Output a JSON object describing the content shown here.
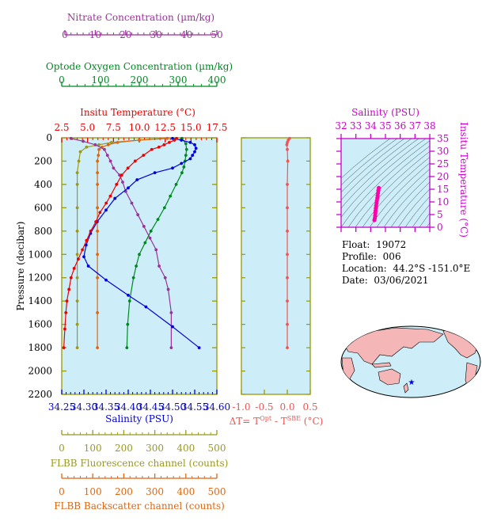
{
  "colors": {
    "nitrate": "#993399",
    "oxygen": "#008822",
    "temperature": "#ee0000",
    "salinity": "#0000dd",
    "fluorescence": "#999922",
    "backscatter": "#dd6611",
    "dt": "#ee5555",
    "ts_axis": "#cc00cc",
    "panel_bg": "#cdeef8",
    "panel_border": "#999900"
  },
  "axes": {
    "nitrate": {
      "label": "Nitrate Concentration (µm/kg)",
      "range": [
        0,
        50
      ],
      "ticks": [
        "0",
        "10",
        "20",
        "30",
        "40",
        "50"
      ]
    },
    "oxygen": {
      "label": "Optode Oxygen Concentration (µm/kg)",
      "range": [
        0,
        400
      ],
      "ticks": [
        "0",
        "100",
        "200",
        "300",
        "400"
      ]
    },
    "temperature": {
      "label": "Insitu Temperature (°C)",
      "range": [
        2.5,
        17.5
      ],
      "ticks": [
        "2.5",
        "5.0",
        "7.5",
        "10.0",
        "12.5",
        "15.0",
        "17.5"
      ]
    },
    "salinity": {
      "label": "Salinity (PSU)",
      "range": [
        34.25,
        34.6
      ],
      "ticks": [
        "34.25",
        "34.30",
        "34.35",
        "34.40",
        "34.45",
        "34.50",
        "34.55",
        "34.60"
      ]
    },
    "pressure": {
      "label": "Pressure (decibar)",
      "range": [
        0,
        2200
      ],
      "ticks": [
        "0",
        "200",
        "400",
        "600",
        "800",
        "1000",
        "1200",
        "1400",
        "1600",
        "1800",
        "2000",
        "2200"
      ]
    },
    "fluorescence": {
      "label": "FLBB Fluorescence channel (counts)",
      "range": [
        0,
        500
      ],
      "ticks": [
        "0",
        "100",
        "200",
        "300",
        "400",
        "500"
      ]
    },
    "backscatter": {
      "label": "FLBB Backscatter channel (counts)",
      "range": [
        0,
        500
      ],
      "ticks": [
        "0",
        "100",
        "200",
        "300",
        "400",
        "500"
      ]
    },
    "dt": {
      "label_main": "ΔT= T",
      "sup1": "Opt",
      "label_mid": " - T",
      "sup2": "SBE",
      "label_end": " (°C)",
      "range": [
        -1.0,
        0.5
      ],
      "ticks": [
        "-1.0",
        "-0.5",
        "0.0",
        "0.5"
      ]
    },
    "ts_salinity": {
      "label": "Salinity (PSU)",
      "range": [
        32,
        38
      ],
      "ticks": [
        "32",
        "33",
        "34",
        "35",
        "36",
        "37",
        "38"
      ]
    },
    "ts_temperature": {
      "label": "Insitu Temperature (°C)",
      "range": [
        0,
        35
      ],
      "ticks": [
        "0",
        "5",
        "10",
        "15",
        "20",
        "25",
        "30",
        "35"
      ]
    }
  },
  "info": {
    "float_label": "Float:",
    "float_value": "19072",
    "profile_label": "Profile:",
    "profile_value": "006",
    "location_label": "Location:",
    "location_value": "44.2°S  -151.0°E",
    "date_label": "Date:",
    "date_value": "03/06/2021"
  },
  "chart_data": [
    {
      "type": "line",
      "description_axis": "profiles vs pressure",
      "y_variable": "Pressure (decibar)",
      "ylim": [
        2200,
        0
      ],
      "series": [
        {
          "key": "temperature",
          "x": [
            13.6,
            13.4,
            12.9,
            12.4,
            11.9,
            11.2,
            10.4,
            9.6,
            8.9,
            8.3,
            7.8,
            7.2,
            6.8,
            6.2,
            5.8,
            5.3,
            4.9,
            4.5,
            4.1,
            3.7,
            3.4,
            3.2,
            3.0,
            2.9,
            2.8,
            2.7
          ],
          "p": [
            5,
            20,
            40,
            60,
            80,
            100,
            150,
            200,
            260,
            320,
            400,
            500,
            560,
            640,
            720,
            800,
            880,
            960,
            1040,
            1120,
            1200,
            1300,
            1400,
            1500,
            1640,
            1800
          ]
        },
        {
          "key": "salinity",
          "x": [
            34.5,
            34.52,
            34.54,
            34.55,
            34.553,
            34.55,
            34.545,
            34.54,
            34.52,
            34.5,
            34.46,
            34.42,
            34.4,
            34.37,
            34.35,
            34.33,
            34.315,
            34.305,
            34.3,
            34.31,
            34.35,
            34.4,
            34.44,
            34.5,
            34.56
          ],
          "p": [
            5,
            20,
            40,
            60,
            90,
            120,
            150,
            180,
            220,
            260,
            300,
            360,
            430,
            520,
            620,
            720,
            820,
            920,
            1020,
            1100,
            1220,
            1350,
            1450,
            1620,
            1800
          ]
        },
        {
          "key": "nitrate",
          "x": [
            2,
            6,
            10,
            13,
            14,
            15,
            16,
            18,
            19,
            20,
            22,
            24,
            26,
            28,
            30,
            31,
            33,
            34,
            35,
            35
          ],
          "p": [
            5,
            30,
            60,
            100,
            150,
            200,
            260,
            320,
            380,
            460,
            560,
            660,
            760,
            860,
            960,
            1100,
            1200,
            1300,
            1500,
            1800
          ]
        },
        {
          "key": "oxygen",
          "x": [
            310,
            320,
            322,
            320,
            318,
            315,
            310,
            295,
            280,
            265,
            248,
            230,
            215,
            200,
            192,
            185,
            175,
            170,
            168
          ],
          "p": [
            5,
            50,
            100,
            150,
            200,
            250,
            300,
            400,
            500,
            600,
            700,
            800,
            900,
            1000,
            1100,
            1200,
            1400,
            1600,
            1800
          ]
        },
        {
          "key": "fluorescence",
          "x": [
            340,
            250,
            160,
            120,
            80,
            60,
            55,
            50,
            50,
            50,
            50,
            50,
            50,
            50,
            50,
            50
          ],
          "p": [
            5,
            20,
            40,
            60,
            80,
            120,
            200,
            300,
            400,
            600,
            800,
            1000,
            1200,
            1400,
            1600,
            1800
          ]
        },
        {
          "key": "backscatter",
          "x": [
            340,
            250,
            180,
            150,
            130,
            120,
            118,
            115,
            115,
            115,
            115,
            115,
            115,
            115,
            115,
            115
          ],
          "p": [
            5,
            20,
            40,
            60,
            80,
            100,
            150,
            200,
            300,
            400,
            600,
            800,
            1000,
            1200,
            1500,
            1800
          ]
        }
      ]
    },
    {
      "type": "line",
      "description_axis": "ΔT vs pressure",
      "x_variable": "ΔT (°C)",
      "xlim": [
        -1.0,
        0.5
      ],
      "ylim": [
        2200,
        0
      ],
      "series": [
        {
          "key": "dt",
          "x": [
            0.05,
            0.02,
            0.0,
            -0.01,
            0.0,
            0.01,
            0.0,
            0.0,
            0.0,
            0.0,
            0.0,
            0.0,
            0.0,
            0.0
          ],
          "p": [
            5,
            20,
            40,
            60,
            100,
            200,
            400,
            600,
            800,
            1000,
            1200,
            1400,
            1600,
            1800
          ]
        }
      ]
    },
    {
      "type": "scatter",
      "description_axis": "T-S diagram",
      "xlim": [
        32,
        38
      ],
      "ylim": [
        0,
        35
      ],
      "series": [
        {
          "key": "ts",
          "x": [
            34.25,
            34.28,
            34.3,
            34.32,
            34.33,
            34.35,
            34.37,
            34.4,
            34.42,
            34.45,
            34.47,
            34.5,
            34.52,
            34.55
          ],
          "y": [
            2.8,
            3.5,
            4.5,
            5.5,
            6.5,
            7.5,
            8.5,
            9.5,
            10.5,
            11.5,
            12.5,
            13.5,
            14.5,
            15.5
          ]
        }
      ]
    }
  ]
}
